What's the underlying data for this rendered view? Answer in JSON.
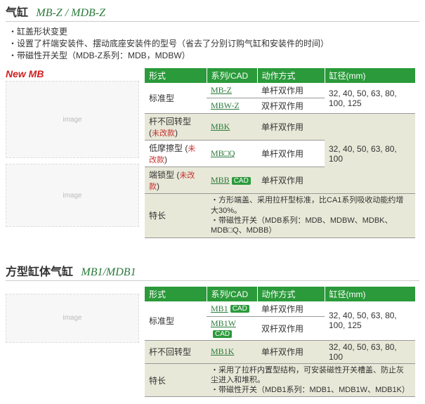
{
  "colors": {
    "header_bg": "#2a9a3a",
    "header_fg": "#ffffff",
    "link": "#2a7a3a",
    "mod_note": "#c83030",
    "stripe_bg": "#e8e8d8",
    "border": "#999999",
    "new_label": "#d02020"
  },
  "section1": {
    "title_main": "气缸",
    "title_series": "MB-Z / MDB-Z",
    "bullets": [
      "缸盖形状变更",
      "设置了杆端安装件、摆动底座安装件的型号（省去了分别订购气缸和安装件的时间）",
      "带磁性开关型（MDB-Z系列：MDB，MDBW）"
    ],
    "new_label": "New MB",
    "headers": {
      "form": "形式",
      "series": "系列/CAD",
      "action": "动作方式",
      "bore": "缸径(mm)"
    },
    "rows": [
      {
        "form": "标准型",
        "form_rowspan": 2,
        "series": "MB-Z",
        "cad": false,
        "action": "单杆双作用",
        "bore": "32, 40, 50, 63, 80, 100, 125",
        "bore_rowspan": 2,
        "stripe": false
      },
      {
        "series": "MBW-Z",
        "cad": false,
        "action": "双杆双作用",
        "stripe": false
      },
      {
        "form_html": "杆不回转型 (<span class=\"mod-note\">未改款</span>)",
        "series": "MBK",
        "cad": false,
        "action": "单杆双作用",
        "bore": "32, 40, 50, 63, 80, 100",
        "bore_rowspan": 3,
        "stripe": true
      },
      {
        "form_html": "低摩擦型 (<span class=\"mod-note\">未改款</span>)",
        "series": "MB□Q",
        "cad": false,
        "action": "单杆双作用",
        "stripe": false
      },
      {
        "form_html": "端锁型 (<span class=\"mod-note\">未改款</span>)",
        "series": "MBB",
        "cad": true,
        "action": "单杆双作用",
        "stripe": true
      }
    ],
    "features_label": "特长",
    "features": [
      "方形端盖、采用拉杆型标准，比CA1系列吸收动能约增大30%。",
      "带磁性开关（MDB系列：MDB、MDBW、MDBK、MDB□Q、MDBB）"
    ]
  },
  "section2": {
    "title_main": "方型缸体气缸",
    "title_series": "MB1/MDB1",
    "headers": {
      "form": "形式",
      "series": "系列/CAD",
      "action": "动作方式",
      "bore": "缸径(mm)"
    },
    "rows": [
      {
        "form": "标准型",
        "form_rowspan": 2,
        "series": "MB1",
        "cad": true,
        "action": "单杆双作用",
        "bore": "32, 40, 50, 63, 80, 100, 125",
        "bore_rowspan": 2,
        "stripe": false
      },
      {
        "series": "MB1W",
        "cad": true,
        "action": "双杆双作用",
        "stripe": false
      },
      {
        "form": "杆不回转型",
        "series": "MB1K",
        "cad": false,
        "action": "单杆双作用",
        "bore": "32, 40, 50, 63, 80, 100",
        "stripe": true
      }
    ],
    "features_label": "特长",
    "features": [
      "采用了拉杆内置型结构，可安装磁性开关槽盖、防止灰尘进入和堆积。",
      "带磁性开关（MDB1系列：MDB1、MDB1W、MDB1K）"
    ]
  },
  "cad_label": "CAD"
}
